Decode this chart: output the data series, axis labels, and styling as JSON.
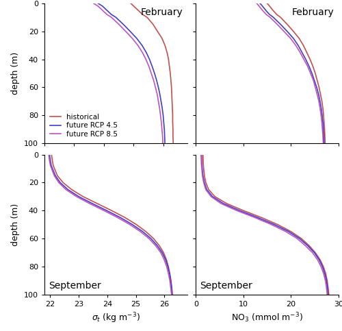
{
  "colors": {
    "historical": "#c0504d",
    "rcp45": "#4040c0",
    "rcp85": "#c050c8"
  },
  "depth": [
    0,
    2,
    5,
    8,
    10,
    15,
    20,
    25,
    30,
    35,
    40,
    45,
    50,
    55,
    60,
    65,
    70,
    75,
    80,
    85,
    90,
    95,
    100
  ],
  "feb_sigma_hist": [
    24.9,
    25.0,
    25.15,
    25.3,
    25.45,
    25.65,
    25.8,
    25.95,
    26.05,
    26.12,
    26.17,
    26.2,
    26.23,
    26.25,
    26.27,
    26.28,
    26.29,
    26.3,
    26.31,
    26.31,
    26.32,
    26.32,
    26.33
  ],
  "feb_sigma_rcp45": [
    23.8,
    23.95,
    24.1,
    24.25,
    24.4,
    24.65,
    24.88,
    25.1,
    25.28,
    25.42,
    25.53,
    25.62,
    25.7,
    25.77,
    25.83,
    25.88,
    25.92,
    25.96,
    25.99,
    26.01,
    26.03,
    26.04,
    26.05
  ],
  "feb_sigma_rcp85": [
    23.65,
    23.8,
    23.95,
    24.1,
    24.25,
    24.5,
    24.73,
    24.95,
    25.14,
    25.29,
    25.41,
    25.51,
    25.59,
    25.67,
    25.73,
    25.79,
    25.83,
    25.87,
    25.9,
    25.93,
    25.95,
    25.97,
    25.98
  ],
  "feb_no3_hist": [
    15.0,
    15.5,
    16.2,
    17.0,
    17.8,
    19.2,
    20.5,
    21.7,
    22.6,
    23.3,
    24.0,
    24.6,
    25.1,
    25.5,
    25.9,
    26.2,
    26.5,
    26.7,
    26.85,
    26.95,
    27.05,
    27.12,
    27.18
  ],
  "feb_no3_rcp45": [
    13.5,
    14.0,
    14.7,
    15.5,
    16.3,
    17.8,
    19.2,
    20.5,
    21.5,
    22.3,
    23.1,
    23.8,
    24.4,
    24.9,
    25.4,
    25.8,
    26.1,
    26.35,
    26.55,
    26.7,
    26.82,
    26.9,
    26.97
  ],
  "feb_no3_rcp85": [
    12.8,
    13.3,
    14.0,
    14.8,
    15.6,
    17.1,
    18.5,
    19.9,
    21.0,
    21.9,
    22.7,
    23.5,
    24.1,
    24.7,
    25.1,
    25.5,
    25.85,
    26.1,
    26.32,
    26.48,
    26.6,
    26.7,
    26.78
  ],
  "sep_sigma_hist": [
    22.05,
    22.06,
    22.08,
    22.11,
    22.15,
    22.25,
    22.45,
    22.75,
    23.15,
    23.65,
    24.15,
    24.62,
    25.02,
    25.35,
    25.62,
    25.82,
    25.97,
    26.07,
    26.14,
    26.19,
    26.23,
    26.26,
    26.28
  ],
  "sep_sigma_rcp45": [
    21.98,
    21.99,
    22.01,
    22.04,
    22.08,
    22.18,
    22.35,
    22.62,
    23.0,
    23.48,
    23.98,
    24.46,
    24.88,
    25.24,
    25.53,
    25.75,
    25.92,
    26.04,
    26.12,
    26.18,
    26.22,
    26.25,
    26.27
  ],
  "sep_sigma_rcp85": [
    21.95,
    21.96,
    21.98,
    22.01,
    22.05,
    22.14,
    22.3,
    22.55,
    22.92,
    23.38,
    23.88,
    24.36,
    24.79,
    25.16,
    25.46,
    25.69,
    25.87,
    25.99,
    26.08,
    26.14,
    26.19,
    26.22,
    26.25
  ],
  "sep_no3_hist": [
    1.5,
    1.52,
    1.55,
    1.6,
    1.65,
    1.8,
    2.1,
    2.7,
    4.0,
    6.5,
    10.0,
    13.8,
    17.2,
    20.0,
    22.2,
    23.8,
    25.1,
    26.1,
    26.8,
    27.3,
    27.6,
    27.8,
    27.95
  ],
  "sep_no3_rcp45": [
    1.2,
    1.22,
    1.25,
    1.3,
    1.35,
    1.5,
    1.8,
    2.3,
    3.5,
    5.8,
    9.2,
    13.0,
    16.5,
    19.5,
    21.8,
    23.5,
    24.9,
    25.9,
    26.6,
    27.1,
    27.45,
    27.65,
    27.8
  ],
  "sep_no3_rcp85": [
    1.1,
    1.12,
    1.15,
    1.2,
    1.25,
    1.38,
    1.65,
    2.1,
    3.2,
    5.3,
    8.6,
    12.4,
    15.9,
    18.9,
    21.3,
    23.0,
    24.5,
    25.55,
    26.3,
    26.85,
    27.22,
    27.45,
    27.6
  ],
  "sigma_feb_xlim": [
    22.0,
    26.8
  ],
  "sigma_sep_xlim": [
    21.8,
    26.8
  ],
  "no3_xlim": [
    0,
    30
  ],
  "depth_lim": [
    0,
    100
  ],
  "sigma_xticks_feb": [
    22,
    23,
    24,
    25,
    26
  ],
  "sigma_xticks_sep": [
    22,
    23,
    24,
    25,
    26
  ],
  "no3_xticks": [
    0,
    10,
    20,
    30
  ],
  "depth_yticks": [
    0,
    20,
    40,
    60,
    80,
    100
  ]
}
